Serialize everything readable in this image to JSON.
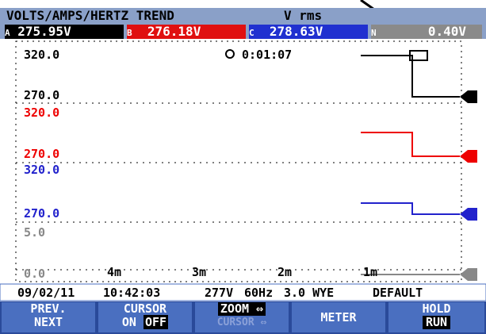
{
  "header": {
    "title": "VOLTS/AMPS/HERTZ TREND",
    "mode": "V rms"
  },
  "channels": [
    {
      "id": "A",
      "reading": "275.95V"
    },
    {
      "id": "B",
      "reading": "276.18V"
    },
    {
      "id": "C",
      "reading": "278.63V"
    },
    {
      "id": "N",
      "reading": "0.40V"
    }
  ],
  "plot": {
    "timer": "0:01:07",
    "scales": [
      {
        "top": "320.0",
        "bottom": "270.0"
      },
      {
        "top": "320.0",
        "bottom": "270.0"
      },
      {
        "top": "320.0",
        "bottom": "270.0"
      },
      {
        "top": "5.0",
        "bottom": "0.0"
      }
    ],
    "time_labels": [
      "4m",
      "3m",
      "2m",
      "1m"
    ]
  },
  "status": {
    "date": "09/02/11",
    "time": "10:42:03",
    "nominal": "277V",
    "frequency": "60Hz",
    "config": "3.0 WYE",
    "limits": "DEFAULT"
  },
  "softkeys": [
    {
      "line1": "PREV.",
      "line2": "NEXT"
    },
    {
      "line1": "CURSOR",
      "on": "ON",
      "off": "OFF"
    },
    {
      "line1": "ZOOM ⇔",
      "line2": "CURSOR ⇔"
    },
    {
      "line1": "METER"
    },
    {
      "line1": "HOLD",
      "line2": "RUN"
    }
  ]
}
